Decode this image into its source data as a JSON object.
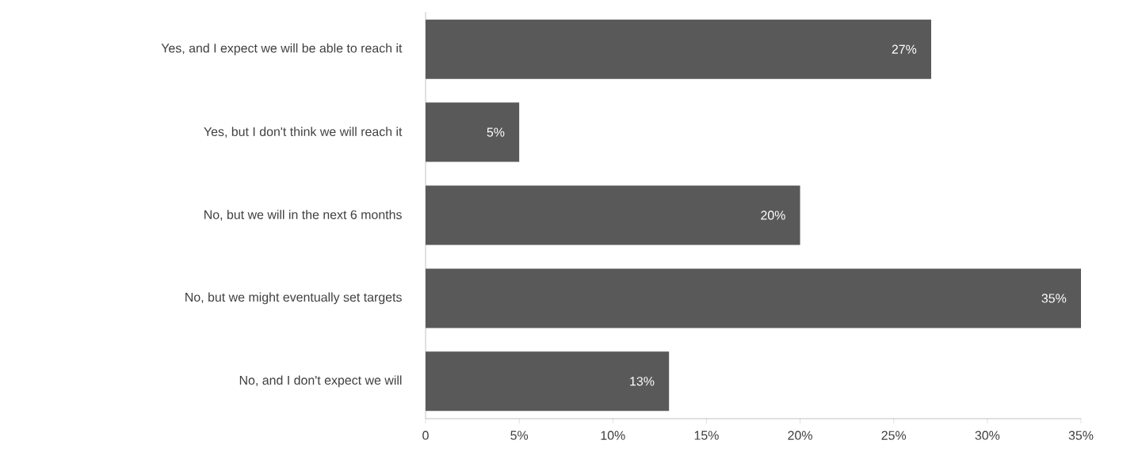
{
  "chart_data": {
    "type": "bar",
    "orientation": "horizontal",
    "categories": [
      "Yes, and I expect we will be able to reach it",
      "Yes, but I don't think we will reach it",
      "No, but we will in the next 6 months",
      "No, but we might eventually set targets",
      "No, and I don't expect we will"
    ],
    "values": [
      27,
      5,
      20,
      35,
      13
    ],
    "value_labels": [
      "27%",
      "5%",
      "20%",
      "35%",
      "13%"
    ],
    "color": "#595959",
    "xlim": [
      0,
      35
    ],
    "xticks": [
      {
        "value": 0,
        "label": "0"
      },
      {
        "value": 5,
        "label": "5%"
      },
      {
        "value": 10,
        "label": "10%"
      },
      {
        "value": 15,
        "label": "15%"
      },
      {
        "value": 20,
        "label": "20%"
      },
      {
        "value": 25,
        "label": "25%"
      },
      {
        "value": 30,
        "label": "30%"
      },
      {
        "value": 35,
        "label": "35%"
      }
    ]
  }
}
